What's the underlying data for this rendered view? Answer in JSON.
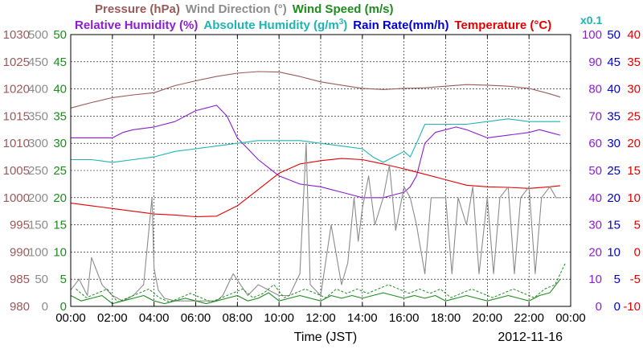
{
  "chart_data": {
    "type": "line",
    "xlabel": "Time (JST)",
    "date": "2012-11-16",
    "x_ticks": [
      "00:00",
      "02:00",
      "04:00",
      "06:00",
      "08:00",
      "10:00",
      "12:00",
      "14:00",
      "16:00",
      "18:00",
      "20:00",
      "22:00",
      "00:00"
    ],
    "xlim_hours": [
      0,
      24
    ],
    "legend": {
      "row1": [
        {
          "text": "Pressure (hPa)",
          "color": "#9b5a5a"
        },
        {
          "text": "Wind Direction (°)",
          "color": "#8c8c8c"
        },
        {
          "text": "Wind Speed (m/s)",
          "color": "#1e8c1e"
        }
      ],
      "row2": [
        {
          "text": "Relative Humidity (%)",
          "color": "#8c1ed2"
        },
        {
          "text": "Absolute Humidity (g/m",
          "sup": "3",
          "close": ")",
          "color": "#1eb4b4"
        },
        {
          "text": "Rain Rate(mm/h)",
          "color": "#0000d2"
        },
        {
          "text": "Temperature (°C)",
          "color": "#e60000"
        }
      ],
      "scale_note": {
        "text": "x0.1",
        "color": "#1eb4b4"
      }
    },
    "axes": {
      "pressure": {
        "color": "#9b5a5a",
        "min": 980,
        "max": 1030,
        "ticks": [
          "980",
          "985",
          "990",
          "995",
          "1000",
          "1005",
          "1010",
          "1015",
          "1020",
          "1025",
          "1030"
        ]
      },
      "wind_direction": {
        "color": "#8c8c8c",
        "min": 0,
        "max": 500,
        "ticks": [
          "0",
          "50",
          "100",
          "150",
          "200",
          "250",
          "300",
          "350",
          "400",
          "450",
          "500"
        ]
      },
      "wind_speed": {
        "color": "#1e8c1e",
        "min": 0,
        "max": 50,
        "ticks": [
          "0",
          "5",
          "10",
          "15",
          "20",
          "25",
          "30",
          "35",
          "40",
          "45",
          "50"
        ]
      },
      "humidity": {
        "color": "#8c1ed2",
        "min": 0,
        "max": 100,
        "ticks": [
          "0",
          "10",
          "20",
          "30",
          "40",
          "50",
          "60",
          "70",
          "80",
          "90",
          "100"
        ]
      },
      "rain_rate": {
        "color": "#0000d2",
        "min": 0,
        "max": 50,
        "ticks": [
          "0",
          "5",
          "10",
          "15",
          "20",
          "25",
          "30",
          "35",
          "40",
          "45",
          "50"
        ]
      },
      "temperature": {
        "color": "#e60000",
        "min": -10,
        "max": 40,
        "ticks": [
          "-10",
          "-5",
          "0",
          "5",
          "10",
          "15",
          "20",
          "25",
          "30",
          "35",
          "40"
        ]
      }
    },
    "grid": true,
    "series": [
      {
        "name": "Pressure (hPa)",
        "axis": "pressure",
        "color": "#9b5a5a",
        "x": [
          0,
          1,
          2,
          3,
          4,
          5,
          6,
          7,
          8,
          9,
          10,
          11,
          12,
          13,
          14,
          15,
          16,
          17,
          18,
          19,
          20,
          21,
          22,
          23,
          23.5
        ],
        "y": [
          1016.5,
          1017.5,
          1018.4,
          1018.9,
          1019.3,
          1020.6,
          1021.5,
          1022.3,
          1022.9,
          1023.2,
          1023.1,
          1022.3,
          1021.3,
          1020.7,
          1020.1,
          1019.9,
          1020.1,
          1020.2,
          1020.5,
          1020.8,
          1020.7,
          1020.5,
          1020.1,
          1019.1,
          1018.5
        ]
      },
      {
        "name": "Relative Humidity (%)",
        "axis": "humidity",
        "color": "#8c1ed2",
        "x": [
          0,
          1,
          2,
          2.5,
          3,
          4,
          5,
          6,
          6.5,
          7,
          7.5,
          8,
          8.5,
          9,
          9.5,
          10,
          11,
          12,
          12.5,
          13,
          13.5,
          14,
          14.5,
          15,
          15.5,
          16,
          16.3,
          16.6,
          17,
          17.5,
          18,
          18.5,
          19,
          20,
          21,
          22,
          22.5,
          23,
          23.5
        ],
        "y": [
          62,
          62,
          62,
          64,
          65,
          66,
          68,
          72,
          73,
          74,
          70,
          62,
          58,
          54,
          51,
          48,
          45,
          44,
          43,
          42,
          41,
          40,
          40,
          40,
          41,
          42,
          44,
          48,
          60,
          64,
          65,
          66,
          65,
          62,
          63,
          64,
          65,
          64,
          63
        ]
      },
      {
        "name": "Absolute Humidity (g/m3) x0.1",
        "axis": "humidity",
        "color": "#1eb4b4",
        "x": [
          0,
          1,
          2,
          3,
          4,
          5,
          6,
          7,
          8,
          9,
          10,
          11,
          12,
          13,
          14,
          14.5,
          15,
          15.5,
          16,
          16.3,
          16.6,
          17,
          18,
          19,
          20,
          21,
          22,
          23,
          23.5
        ],
        "y": [
          54,
          54,
          53,
          54,
          55,
          57,
          58,
          59,
          60,
          61,
          61,
          61,
          60,
          59,
          58,
          55,
          53,
          55,
          57,
          55,
          60,
          67,
          67,
          67,
          68,
          69,
          68,
          68,
          68
        ]
      },
      {
        "name": "Temperature (°C)",
        "axis": "temperature",
        "color": "#e60000",
        "x": [
          0,
          1,
          2,
          3,
          4,
          5,
          6,
          7,
          8,
          9,
          10,
          11,
          12,
          13,
          14,
          15,
          16,
          17,
          18,
          19,
          20,
          21,
          22,
          23,
          23.5
        ],
        "y": [
          9.0,
          8.5,
          8.0,
          7.5,
          7.0,
          6.8,
          6.5,
          6.6,
          8.5,
          11.5,
          14.5,
          16.2,
          16.8,
          17.2,
          17.0,
          16.2,
          15.3,
          14.3,
          13.3,
          12.3,
          12.0,
          11.9,
          11.7,
          12.0,
          12.2
        ]
      },
      {
        "name": "Wind Direction (°)",
        "axis": "wind_direction",
        "color": "#8c8c8c",
        "x": [
          0,
          0.4,
          0.8,
          1.0,
          1.5,
          2.0,
          2.5,
          3.0,
          3.5,
          3.9,
          4.0,
          4.2,
          4.5,
          5,
          6,
          7,
          7.3,
          7.8,
          8.5,
          9,
          10,
          10.5,
          11,
          11.3,
          11.5,
          12,
          12.5,
          13,
          13.3,
          13.6,
          13.8,
          14,
          14.3,
          14.6,
          15,
          15.3,
          15.6,
          16,
          16.3,
          16.6,
          17,
          17.3,
          17.6,
          18,
          18.3,
          18.6,
          19,
          19.3,
          19.6,
          20,
          20.3,
          20.6,
          21,
          21.3,
          21.6,
          22,
          22.3,
          22.6,
          23,
          23.3,
          23.5
        ],
        "y": [
          30,
          50,
          20,
          90,
          40,
          20,
          10,
          20,
          40,
          200,
          70,
          30,
          15,
          10,
          10,
          10,
          20,
          60,
          20,
          40,
          20,
          20,
          60,
          300,
          40,
          20,
          150,
          40,
          80,
          200,
          120,
          180,
          240,
          150,
          200,
          260,
          140,
          220,
          200,
          150,
          60,
          200,
          200,
          200,
          60,
          200,
          150,
          220,
          60,
          200,
          60,
          200,
          220,
          60,
          200,
          220,
          60,
          200,
          220,
          200,
          200
        ]
      },
      {
        "name": "Wind Speed (m/s)",
        "axis": "wind_speed",
        "color": "#1e8c1e",
        "x": [
          0,
          0.5,
          1,
          1.5,
          2,
          2.5,
          3,
          3.5,
          4,
          4.5,
          5,
          5.5,
          6,
          6.5,
          7,
          7.5,
          8,
          8.5,
          9,
          9.5,
          10,
          10.5,
          11,
          11.5,
          12,
          12.5,
          13,
          13.5,
          14,
          14.5,
          15,
          15.5,
          16,
          16.5,
          17,
          17.5,
          18,
          18.5,
          19,
          19.5,
          20,
          20.5,
          21,
          21.5,
          22,
          22.5,
          23,
          23.5
        ],
        "y": [
          2,
          1,
          1.5,
          2,
          0.5,
          1,
          1.5,
          2,
          1,
          0.5,
          1,
          1.5,
          1,
          0.5,
          1,
          1.5,
          2,
          1,
          1.5,
          2.5,
          1,
          1.5,
          2,
          1.5,
          1,
          2,
          1.5,
          2,
          1.5,
          2,
          2.5,
          2,
          1.5,
          2,
          1.5,
          2,
          1,
          1.5,
          2,
          1.5,
          1,
          1.5,
          2,
          1.5,
          1,
          2,
          2.5,
          5
        ]
      }
    ]
  }
}
